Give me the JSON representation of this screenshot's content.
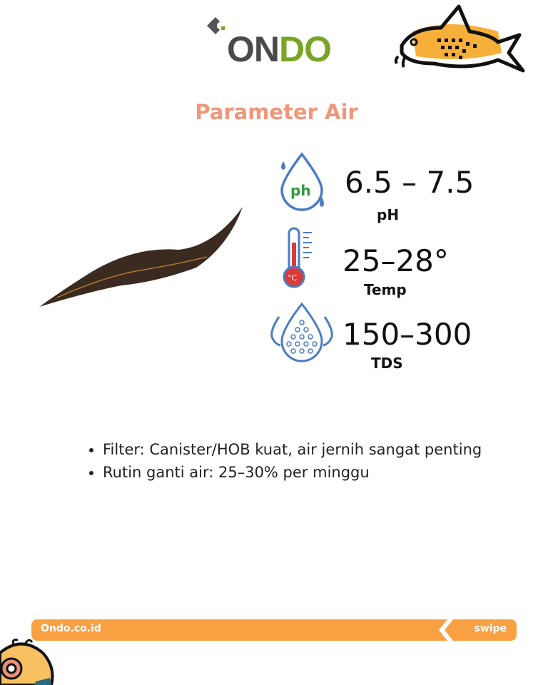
{
  "brand": {
    "logo_part1": "ON",
    "logo_part2": "DO",
    "colors": {
      "dark": "#4a4a4a",
      "green": "#7aa427",
      "orange": "#f9a142",
      "title": "#f0967a"
    }
  },
  "title": "Parameter Air",
  "params": [
    {
      "icon": "ph-drop-icon",
      "value": "6.5 – 7.5",
      "label": "pH"
    },
    {
      "icon": "thermometer-icon",
      "value": "25–28°",
      "label": "Temp"
    },
    {
      "icon": "tds-drops-icon",
      "value": "150–300",
      "label": "TDS"
    }
  ],
  "notes": [
    "Filter: Canister/HOB kuat, air jernih sangat penting",
    "Rutin ganti air: 25–30% per minggu"
  ],
  "footer": {
    "site": "Ondo.co.id",
    "swipe": "swipe"
  }
}
